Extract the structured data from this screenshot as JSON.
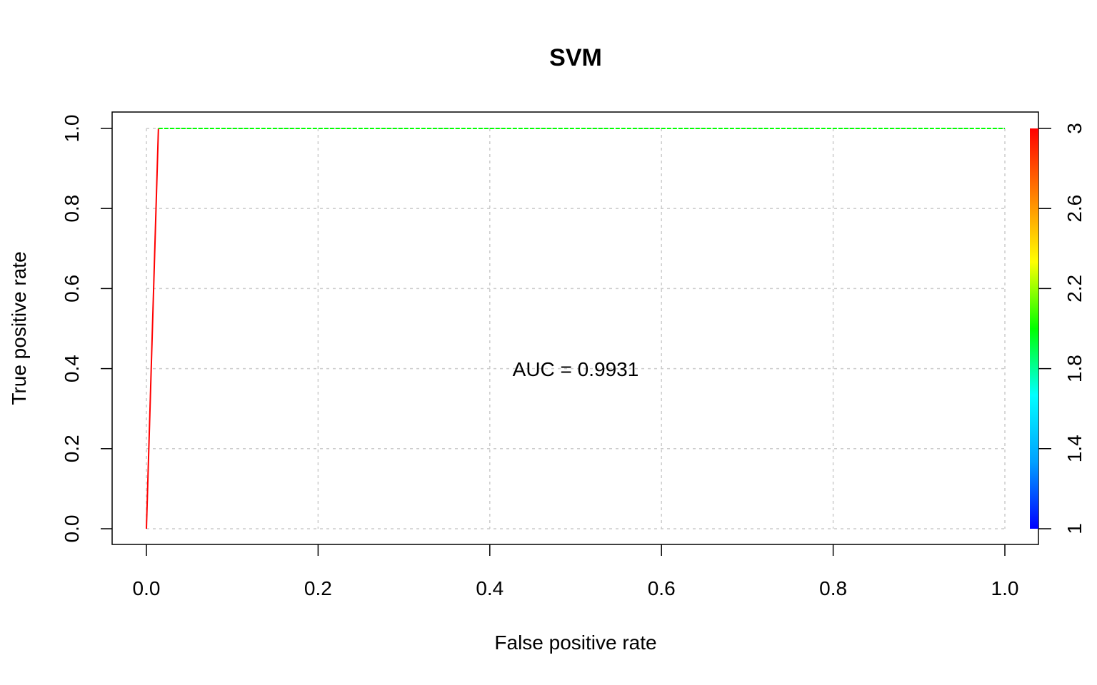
{
  "chart_data": {
    "type": "line",
    "title": "SVM",
    "xlabel": "False positive rate",
    "ylabel": "True positive rate",
    "xlim": [
      0,
      1
    ],
    "ylim": [
      0,
      1
    ],
    "x_ticks": [
      "0.0",
      "0.2",
      "0.4",
      "0.6",
      "0.8",
      "1.0"
    ],
    "y_ticks": [
      "0.0",
      "0.2",
      "0.4",
      "0.6",
      "0.8",
      "1.0"
    ],
    "grid": true,
    "series": [
      {
        "x": [
          0.0,
          0.014,
          1.0
        ],
        "y": [
          0.0,
          1.0,
          1.0
        ],
        "cutoffs": [
          3,
          3,
          2
        ]
      }
    ],
    "colorbar": {
      "range": [
        1,
        3
      ],
      "ticks": [
        "1",
        "1.4",
        "1.8",
        "2.2",
        "2.6",
        "3"
      ],
      "colors": [
        "#0000ff",
        "#00a0ff",
        "#00ffff",
        "#00ff00",
        "#ffff00",
        "#ff8000",
        "#ff0000"
      ]
    },
    "annotation": "AUC =  0.9931",
    "grid_color": "#cccccc"
  }
}
